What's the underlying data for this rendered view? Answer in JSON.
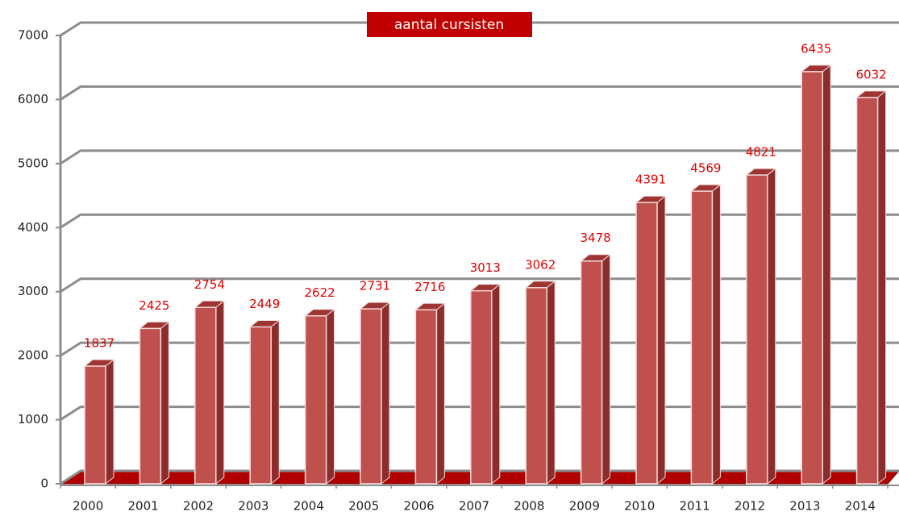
{
  "chart_data": {
    "type": "bar3d",
    "title": "aantal cursisten",
    "categories": [
      "2000",
      "2001",
      "2002",
      "2003",
      "2004",
      "2005",
      "2006",
      "2007",
      "2008",
      "2009",
      "2010",
      "2011",
      "2012",
      "2013",
      "2014"
    ],
    "values": [
      1837,
      2425,
      2754,
      2449,
      2622,
      2731,
      2716,
      3013,
      3062,
      3478,
      4391,
      4569,
      4821,
      6435,
      6032
    ],
    "color": "#c0504d",
    "ylim": [
      0,
      7000
    ],
    "yticks": [
      0,
      1000,
      2000,
      3000,
      4000,
      5000,
      6000,
      7000
    ],
    "grid": true
  }
}
